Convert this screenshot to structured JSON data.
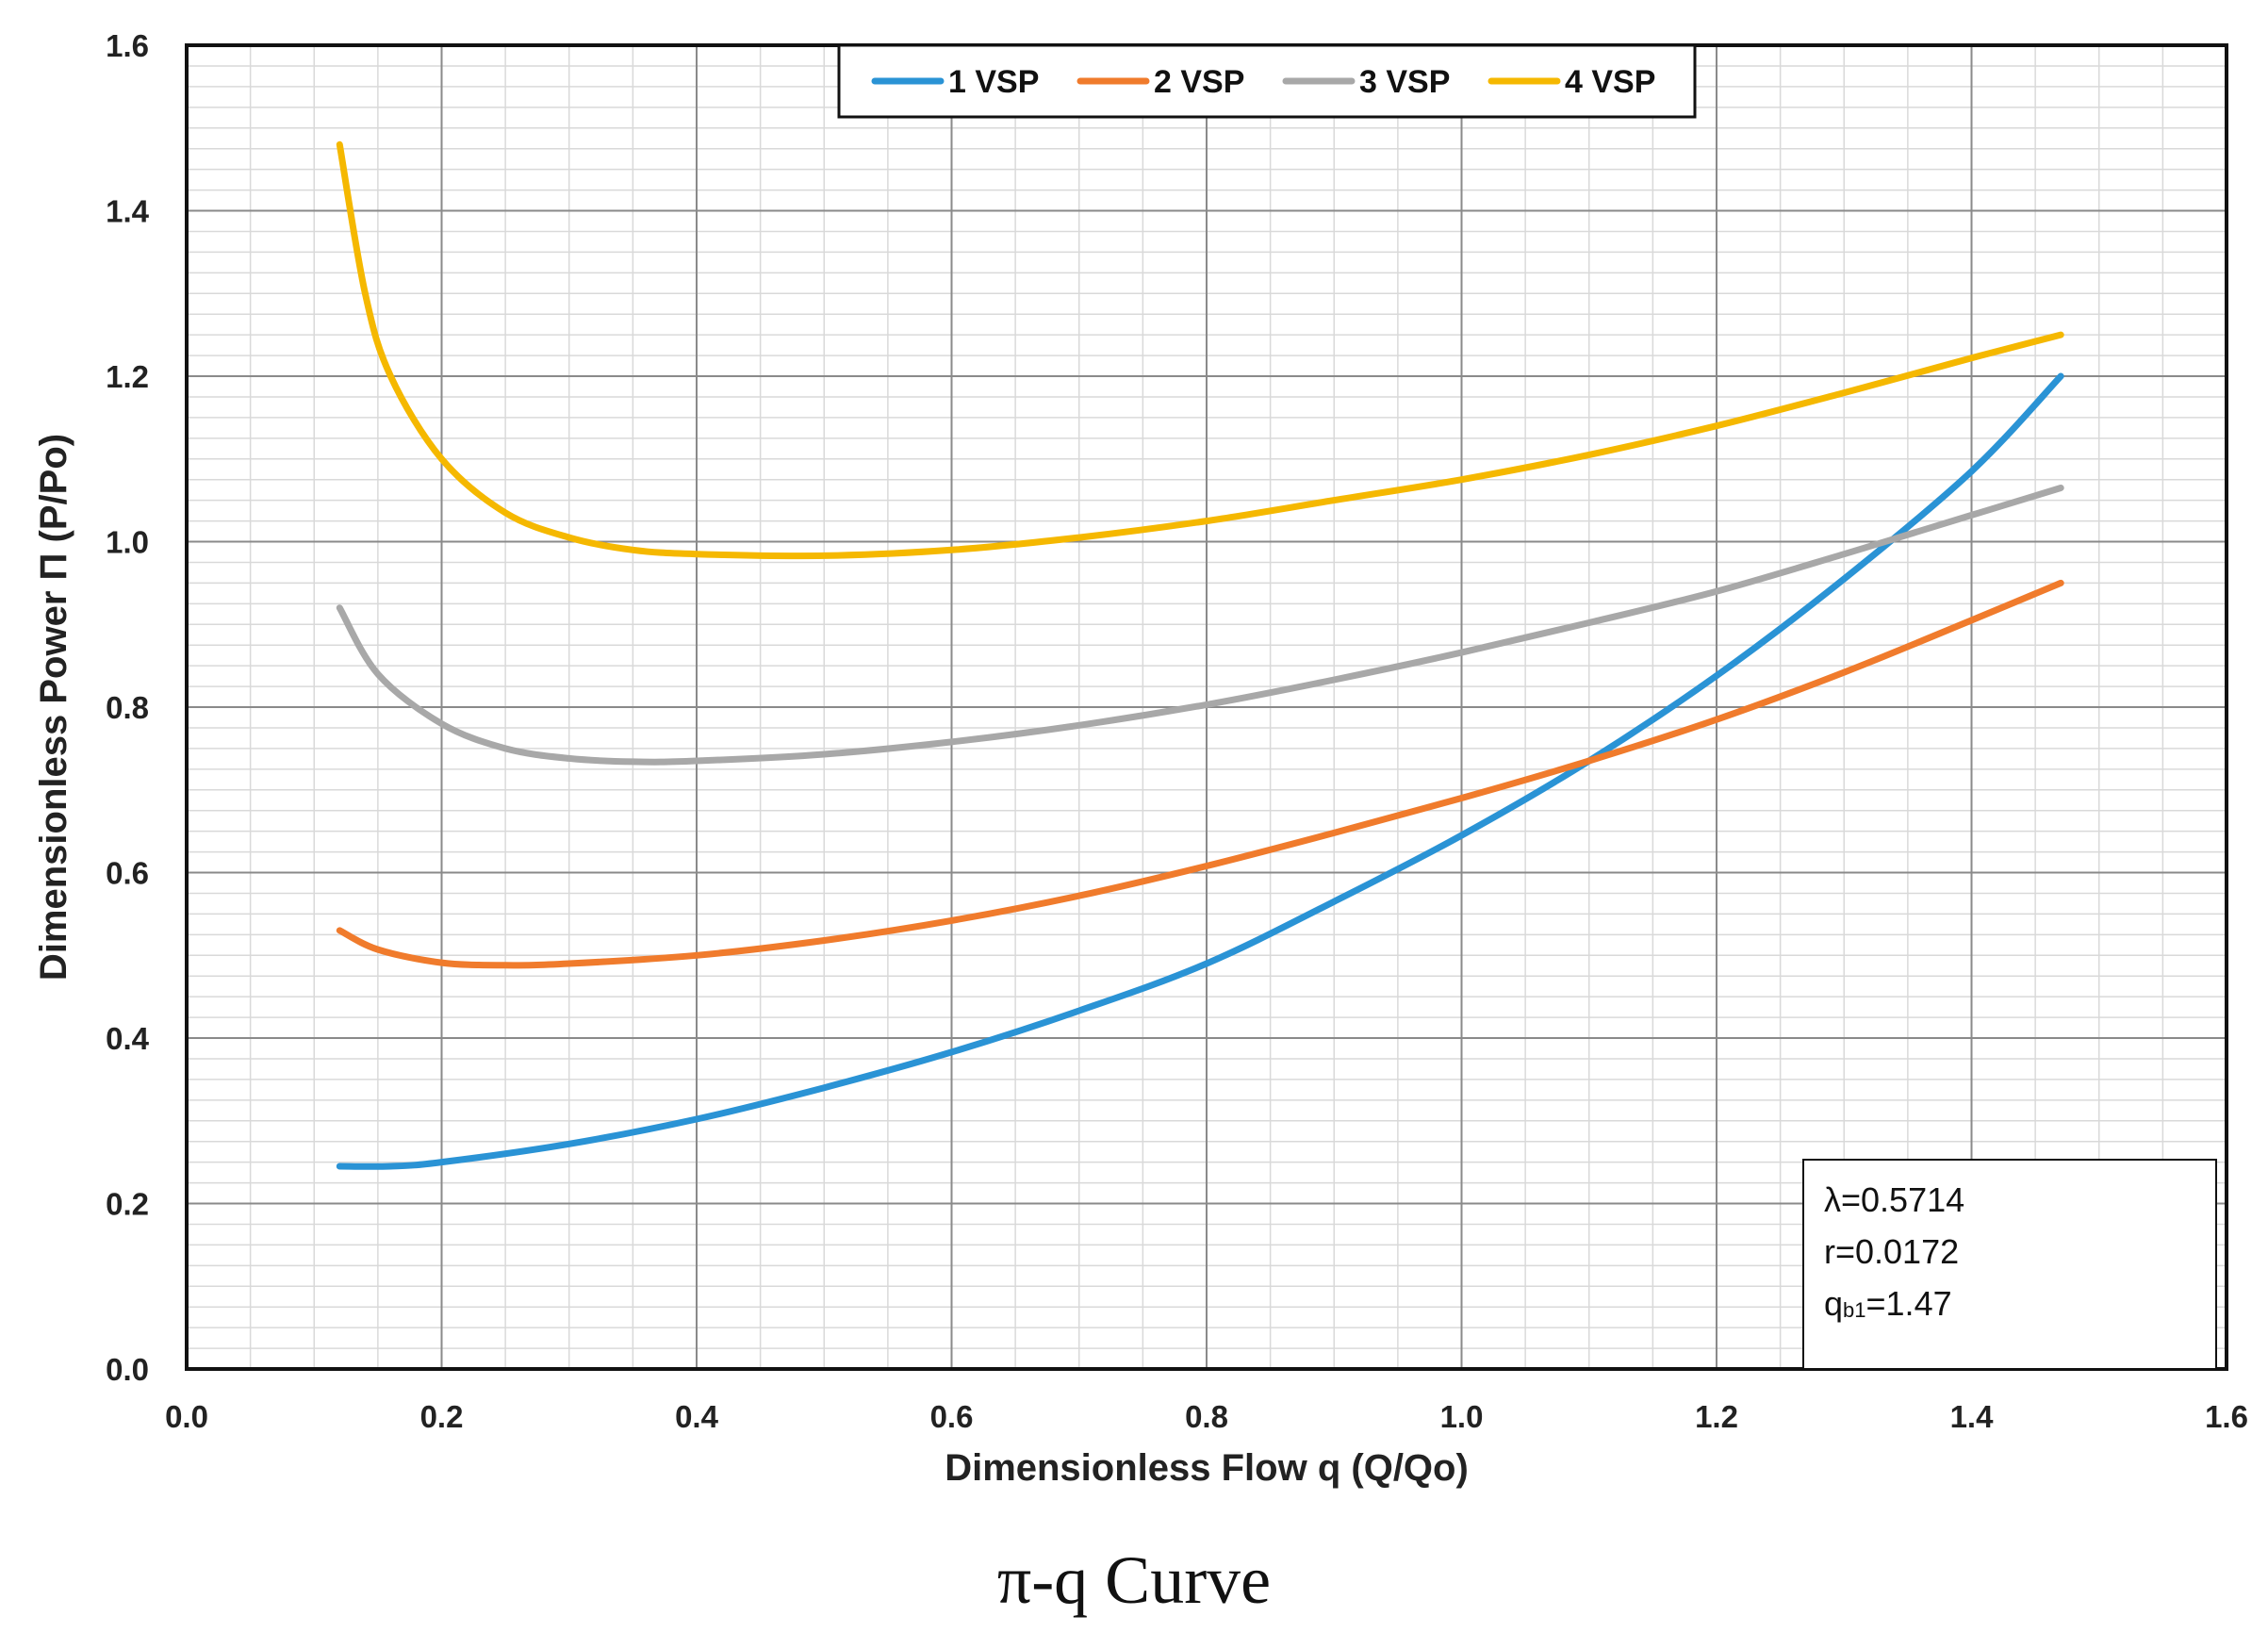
{
  "caption": "π-q Curve",
  "chart_data": {
    "type": "line",
    "title": "",
    "xlabel": "Dimensionless Flow q (Q/Qo)",
    "ylabel": "Dimensionless Power Π (P/Po)",
    "xlim": [
      0.0,
      1.6
    ],
    "ylim": [
      0.0,
      1.6
    ],
    "x_ticks": [
      "0.0",
      "0.2",
      "0.4",
      "0.6",
      "0.8",
      "1.0",
      "1.2",
      "1.4",
      "1.6"
    ],
    "y_ticks": [
      "0.0",
      "0.2",
      "0.4",
      "0.6",
      "0.8",
      "1.0",
      "1.2",
      "1.4",
      "1.6"
    ],
    "grid": true,
    "legend_position": "top-center",
    "series": [
      {
        "name": "1 VSP",
        "color": "#2a93d5",
        "x": [
          0.12,
          0.16,
          0.2,
          0.3,
          0.4,
          0.5,
          0.6,
          0.7,
          0.8,
          0.9,
          1.0,
          1.1,
          1.2,
          1.3,
          1.4,
          1.47
        ],
        "y": [
          0.245,
          0.245,
          0.25,
          0.272,
          0.302,
          0.34,
          0.383,
          0.433,
          0.49,
          0.565,
          0.645,
          0.735,
          0.838,
          0.955,
          1.085,
          1.2
        ]
      },
      {
        "name": "2 VSP",
        "color": "#f07b2c",
        "x": [
          0.12,
          0.15,
          0.2,
          0.25,
          0.3,
          0.4,
          0.5,
          0.6,
          0.7,
          0.8,
          0.9,
          1.0,
          1.1,
          1.2,
          1.3,
          1.4,
          1.47
        ],
        "y": [
          0.53,
          0.507,
          0.491,
          0.488,
          0.49,
          0.5,
          0.518,
          0.542,
          0.572,
          0.608,
          0.648,
          0.69,
          0.735,
          0.785,
          0.842,
          0.905,
          0.95
        ]
      },
      {
        "name": "3 VSP",
        "color": "#a8a8a8",
        "x": [
          0.12,
          0.15,
          0.2,
          0.25,
          0.3,
          0.35,
          0.4,
          0.5,
          0.6,
          0.7,
          0.8,
          0.9,
          1.0,
          1.1,
          1.2,
          1.3,
          1.4,
          1.47
        ],
        "y": [
          0.92,
          0.84,
          0.78,
          0.75,
          0.738,
          0.734,
          0.735,
          0.743,
          0.758,
          0.778,
          0.803,
          0.833,
          0.866,
          0.902,
          0.94,
          0.985,
          1.032,
          1.065
        ]
      },
      {
        "name": "4 VSP",
        "color": "#f5b800",
        "x": [
          0.12,
          0.14,
          0.16,
          0.2,
          0.25,
          0.3,
          0.35,
          0.4,
          0.5,
          0.6,
          0.7,
          0.8,
          0.9,
          1.0,
          1.1,
          1.2,
          1.3,
          1.4,
          1.47
        ],
        "y": [
          1.48,
          1.3,
          1.2,
          1.1,
          1.035,
          1.005,
          0.99,
          0.985,
          0.983,
          0.99,
          1.005,
          1.025,
          1.05,
          1.075,
          1.105,
          1.14,
          1.18,
          1.222,
          1.25
        ]
      }
    ],
    "annotation": {
      "lines": [
        {
          "label": "λ=0.5714"
        },
        {
          "label": "r=0.0172"
        },
        {
          "prefix": "q",
          "subscript": "b1",
          "suffix": "=1.47"
        }
      ]
    }
  }
}
